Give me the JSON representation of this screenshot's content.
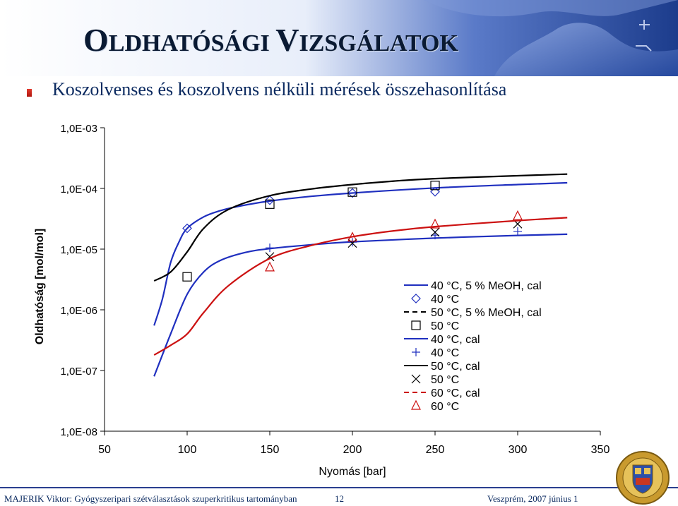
{
  "slide": {
    "title_parts": [
      {
        "text": "O",
        "size": "big"
      },
      {
        "text": "LDHATÓSÁGI ",
        "size": "small"
      },
      {
        "text": "V",
        "size": "big"
      },
      {
        "text": "IZSGÁLATOK",
        "size": "small"
      }
    ],
    "subtitle": "Koszolvenses és koszolvens nélküli mérések összehasonlítása",
    "footer_left": "MAJERIK Viktor: Gyógyszeripari szétválasztások szuperkritikus tartományban",
    "page_number": "12",
    "footer_right": "Veszprém, 2007 június 1",
    "colors": {
      "title": "#0a1a33",
      "text": "#0b2a60",
      "banner": "#1f3f8f"
    }
  },
  "chart_data": {
    "type": "scatter",
    "title": "",
    "xlabel": "Nyomás [bar]",
    "ylabel": "Oldhatóság [mol/mol]",
    "xlim": [
      50,
      350
    ],
    "ylim_log10": [
      -8,
      -3
    ],
    "x_ticks": [
      50,
      100,
      150,
      200,
      250,
      300,
      350
    ],
    "x_tick_labels": [
      "50",
      "100",
      "150",
      "200",
      "250",
      "300",
      "350"
    ],
    "y_ticks_log10": [
      -3,
      -4,
      -5,
      -6,
      -7,
      -8
    ],
    "y_tick_labels": [
      "1,0E-03",
      "1,0E-04",
      "1,0E-05",
      "1,0E-06",
      "1,0E-07",
      "1,0E-08"
    ],
    "y_scale": "log",
    "grid": false,
    "legend_position": "right",
    "series": [
      {
        "name": "40 °C, 5 % MeOH, cal",
        "kind": "line",
        "color": "#1f2fbf",
        "dash": "solid",
        "x": [
          80,
          85,
          90,
          95,
          100,
          110,
          120,
          130,
          150,
          175,
          200,
          250,
          300,
          330
        ],
        "y": [
          5.5e-07,
          1.5e-06,
          6e-06,
          1.3e-05,
          2.2e-05,
          3.4e-05,
          4.3e-05,
          5e-05,
          6.2e-05,
          7.4e-05,
          8.4e-05,
          0.000102,
          0.000116,
          0.000124
        ]
      },
      {
        "name": "40 °C",
        "kind": "marker",
        "marker": "diamond",
        "color": "#1f2fbf",
        "x": [
          100,
          150,
          200,
          250
        ],
        "y": [
          2.2e-05,
          6.4e-05,
          8.4e-05,
          8.8e-05
        ]
      },
      {
        "name": "50 °C, 5 % MeOH, cal",
        "kind": "line",
        "color": "#000000",
        "dash": "dashed",
        "x": [],
        "y": []
      },
      {
        "name": "50 °C",
        "kind": "marker",
        "marker": "square",
        "color": "#000000",
        "x": [
          100,
          150,
          200,
          250
        ],
        "y": [
          3.5e-06,
          5.5e-05,
          8.7e-05,
          0.000112
        ]
      },
      {
        "name": "40 °C, cal",
        "kind": "line",
        "color": "#1f2fbf",
        "dash": "solid",
        "x": [
          80,
          90,
          100,
          110,
          120,
          135,
          150,
          175,
          200,
          250,
          300,
          330
        ],
        "y": [
          8e-08,
          4e-07,
          1.8e-06,
          4.2e-06,
          6.5e-06,
          8.8e-06,
          1.02e-05,
          1.18e-05,
          1.32e-05,
          1.52e-05,
          1.68e-05,
          1.76e-05
        ]
      },
      {
        "name": "40 °C",
        "kind": "marker",
        "marker": "plus",
        "color": "#1f2fbf",
        "x": [
          150,
          200,
          250,
          300
        ],
        "y": [
          1.05e-05,
          1.3e-05,
          1.7e-05,
          1.95e-05
        ]
      },
      {
        "name": "50 °C, cal",
        "kind": "line",
        "color": "#000000",
        "dash": "solid",
        "x": [
          80,
          90,
          100,
          110,
          125,
          150,
          175,
          200,
          225,
          250,
          300,
          330
        ],
        "y": [
          3e-06,
          4.2e-06,
          9e-06,
          2.2e-05,
          4.5e-05,
          7.6e-05,
          9.8e-05,
          0.000116,
          0.000132,
          0.000145,
          0.000162,
          0.000172
        ]
      },
      {
        "name": "50 °C",
        "kind": "marker",
        "marker": "x",
        "color": "#000000",
        "x": [
          150,
          200,
          250,
          300
        ],
        "y": [
          7.5e-06,
          1.25e-05,
          1.9e-05,
          2.6e-05
        ]
      },
      {
        "name": "60 °C, cal",
        "kind": "line",
        "color": "#cc1111",
        "dash": "dashed",
        "x": [
          80,
          90,
          100,
          110,
          125,
          150,
          175,
          200,
          225,
          250,
          300,
          330
        ],
        "y": [
          1.8e-07,
          2.6e-07,
          4e-07,
          9e-07,
          2.5e-06,
          7e-06,
          1.15e-05,
          1.6e-05,
          2e-05,
          2.35e-05,
          2.95e-05,
          3.3e-05
        ]
      },
      {
        "name": "60 °C",
        "kind": "marker",
        "marker": "triangle",
        "color": "#cc1111",
        "x": [
          150,
          200,
          250,
          300
        ],
        "y": [
          5e-06,
          1.55e-05,
          2.55e-05,
          3.5e-05
        ]
      }
    ]
  }
}
